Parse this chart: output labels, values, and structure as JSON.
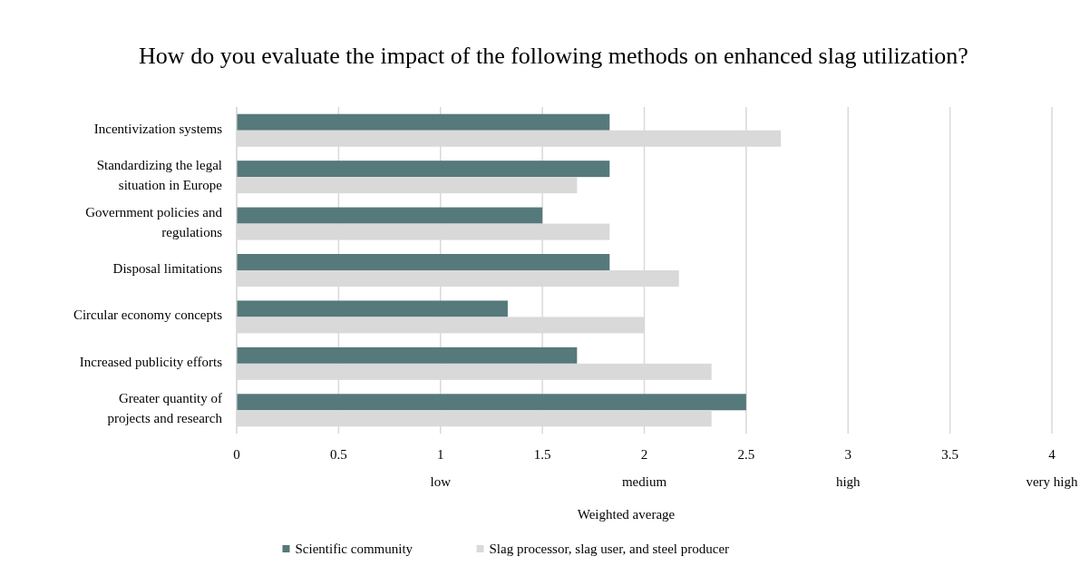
{
  "chart_data": {
    "type": "bar",
    "orientation": "horizontal",
    "title": "How do you evaluate the impact of the following methods on enhanced slag utilization?",
    "xlabel": "Weighted average",
    "categories": [
      "Incentivization systems",
      "Standardizing the legal situation in Europe",
      "Government policies and regulations",
      "Disposal limitations",
      "Circular economy concepts",
      "Increased publicity efforts",
      "Greater quantity of projects and research"
    ],
    "series": [
      {
        "name": "Scientific community",
        "color": "#56797b",
        "values": [
          1.83,
          1.83,
          1.5,
          1.83,
          1.33,
          1.67,
          2.5
        ]
      },
      {
        "name": "Slag processor, slag user, and steel producer",
        "color": "#d9d9d9",
        "values": [
          2.67,
          1.67,
          1.83,
          2.17,
          2,
          2.33,
          2.33
        ]
      }
    ],
    "xlim": [
      0,
      4
    ],
    "xticks": [
      0,
      0.5,
      {
        "value": 1,
        "label": "1\nlow"
      },
      1.5,
      {
        "value": 2,
        "label": "2\nmedium"
      },
      2.5,
      {
        "value": 3,
        "label": "3\nhigh"
      },
      3.5,
      {
        "value": 4,
        "label": "4\nvery high"
      }
    ],
    "grid": "x",
    "legend": "bottom"
  }
}
